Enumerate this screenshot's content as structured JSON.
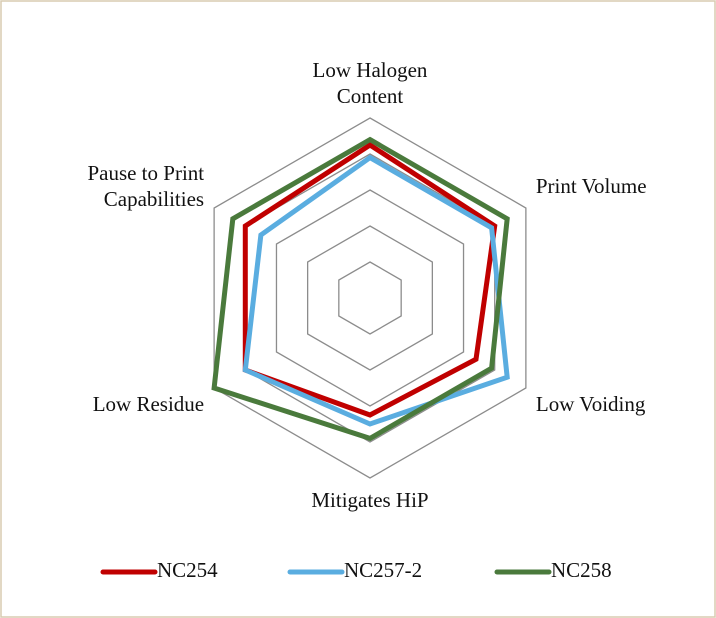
{
  "chart_data": {
    "type": "radar",
    "categories": [
      "Low Halogen Content",
      "Print  Volume",
      "Low Voiding",
      "Mitigates HiP",
      "Low Residue",
      "Pause to Print Capabilities"
    ],
    "series": [
      {
        "name": "NC254",
        "color": "#c00000",
        "values": [
          4.25,
          4.0,
          3.4,
          3.25,
          4.0,
          4.0
        ]
      },
      {
        "name": "NC257-2",
        "color": "#5aade0",
        "values": [
          3.9,
          3.9,
          4.4,
          3.5,
          4.0,
          3.5
        ]
      },
      {
        "name": "NC258",
        "color": "#4a7a3c",
        "values": [
          4.4,
          4.4,
          3.9,
          3.9,
          5.0,
          4.4
        ]
      }
    ],
    "rlim": [
      0,
      5
    ],
    "rticks": [
      1,
      2,
      3,
      4,
      5
    ],
    "grid": true,
    "legend": "bottom"
  }
}
